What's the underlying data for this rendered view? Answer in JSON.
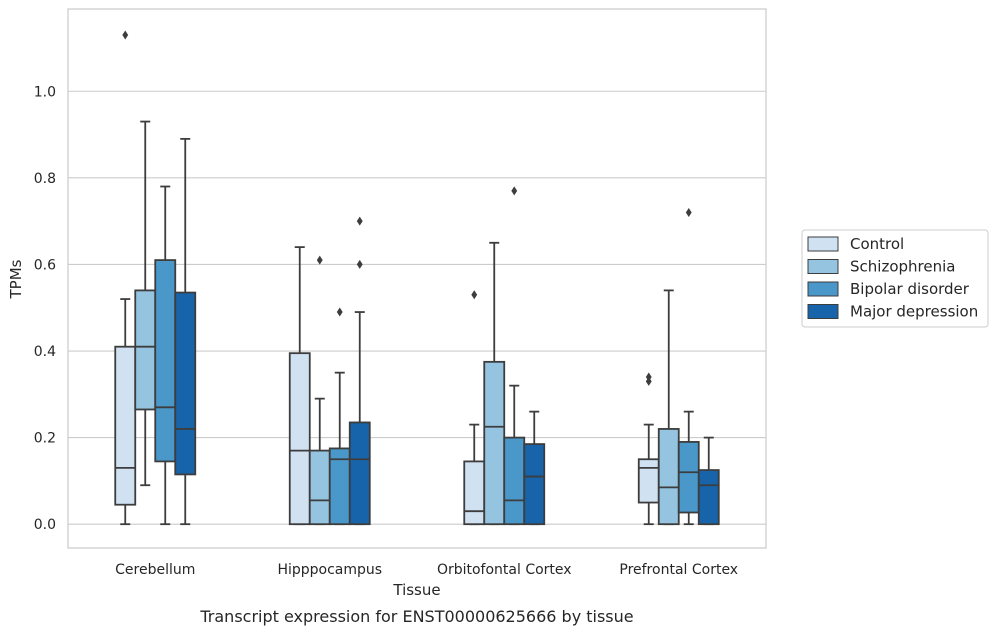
{
  "chart_data": {
    "type": "box",
    "caption": "Transcript expression for ENST00000625666 by tissue",
    "xlabel": "Tissue",
    "ylabel": "TPMs",
    "ylim": [
      -0.055,
      1.19
    ],
    "yticks": [
      "0.0",
      "0.2",
      "0.4",
      "0.6",
      "0.8",
      "1.0"
    ],
    "grid": true,
    "legend_position": "right",
    "categories": [
      "Cerebellum",
      "Hipppocampus",
      "Orbitofontal Cortex",
      "Prefrontal Cortex"
    ],
    "series": [
      {
        "name": "Control",
        "color": "#d0e1f2",
        "boxes": [
          {
            "whislo": 0.0,
            "q1": 0.045,
            "med": 0.13,
            "q3": 0.41,
            "whishi": 0.52,
            "fliers": [
              1.13
            ]
          },
          {
            "whislo": 0.0,
            "q1": 0.0,
            "med": 0.17,
            "q3": 0.395,
            "whishi": 0.64,
            "fliers": []
          },
          {
            "whislo": 0.0,
            "q1": 0.0,
            "med": 0.03,
            "q3": 0.145,
            "whishi": 0.23,
            "fliers": [
              0.53
            ]
          },
          {
            "whislo": 0.0,
            "q1": 0.05,
            "med": 0.13,
            "q3": 0.15,
            "whishi": 0.23,
            "fliers": [
              0.33,
              0.34
            ]
          }
        ]
      },
      {
        "name": "Schizophrenia",
        "color": "#94c4df",
        "boxes": [
          {
            "whislo": 0.09,
            "q1": 0.265,
            "med": 0.41,
            "q3": 0.54,
            "whishi": 0.93,
            "fliers": []
          },
          {
            "whislo": 0.0,
            "q1": 0.0,
            "med": 0.055,
            "q3": 0.17,
            "whishi": 0.29,
            "fliers": [
              0.61
            ]
          },
          {
            "whislo": 0.0,
            "q1": 0.0,
            "med": 0.225,
            "q3": 0.375,
            "whishi": 0.65,
            "fliers": []
          },
          {
            "whislo": 0.0,
            "q1": 0.0,
            "med": 0.085,
            "q3": 0.22,
            "whishi": 0.54,
            "fliers": []
          }
        ]
      },
      {
        "name": "Bipolar disorder",
        "color": "#4a98c9",
        "boxes": [
          {
            "whislo": 0.0,
            "q1": 0.145,
            "med": 0.27,
            "q3": 0.61,
            "whishi": 0.78,
            "fliers": []
          },
          {
            "whislo": 0.0,
            "q1": 0.0,
            "med": 0.15,
            "q3": 0.175,
            "whishi": 0.35,
            "fliers": [
              0.49
            ]
          },
          {
            "whislo": 0.0,
            "q1": 0.0,
            "med": 0.055,
            "q3": 0.2,
            "whishi": 0.32,
            "fliers": [
              0.77
            ]
          },
          {
            "whislo": 0.0,
            "q1": 0.027,
            "med": 0.12,
            "q3": 0.19,
            "whishi": 0.26,
            "fliers": [
              0.72
            ]
          }
        ]
      },
      {
        "name": "Major depression",
        "color": "#1764ab",
        "boxes": [
          {
            "whislo": 0.0,
            "q1": 0.115,
            "med": 0.22,
            "q3": 0.535,
            "whishi": 0.89,
            "fliers": []
          },
          {
            "whislo": 0.0,
            "q1": 0.0,
            "med": 0.15,
            "q3": 0.235,
            "whishi": 0.49,
            "fliers": [
              0.6,
              0.7
            ]
          },
          {
            "whislo": 0.0,
            "q1": 0.0,
            "med": 0.11,
            "q3": 0.185,
            "whishi": 0.26,
            "fliers": []
          },
          {
            "whislo": 0.0,
            "q1": 0.0,
            "med": 0.09,
            "q3": 0.125,
            "whishi": 0.2,
            "fliers": []
          }
        ]
      }
    ]
  }
}
